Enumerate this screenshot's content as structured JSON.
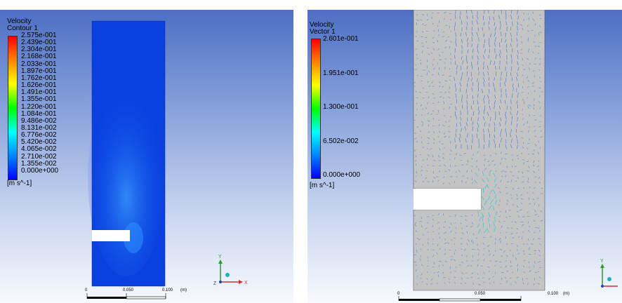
{
  "left_view": {
    "legend": {
      "variable": "Velocity",
      "name": "Contour 1",
      "ticks": [
        "2.575e-001",
        "2.439e-001",
        "2.304e-001",
        "2.168e-001",
        "2.033e-001",
        "1.897e-001",
        "1.762e-001",
        "1.626e-001",
        "1.491e-001",
        "1.355e-001",
        "1.220e-001",
        "1.084e-001",
        "9.486e-002",
        "8.131e-002",
        "6.776e-002",
        "5.420e-002",
        "4.065e-002",
        "2.710e-002",
        "1.355e-002",
        "0.000e+000"
      ],
      "unit": "[m s^-1]"
    },
    "scale": {
      "labels": [
        "0",
        "0.050",
        "0.100"
      ],
      "unit": "(m)"
    },
    "axes": {
      "y": "Y",
      "x": "X",
      "z": "Z"
    }
  },
  "right_view": {
    "legend": {
      "variable": "Velocity",
      "name": "Vector 1",
      "ticks": [
        "2.601e-001",
        "1.951e-001",
        "1.300e-001",
        "6.502e-002",
        "0.000e+000"
      ],
      "unit": "[m s^-1]"
    },
    "scale": {
      "labels": [
        "0",
        "0.050",
        "0.100"
      ],
      "unit": "(m)"
    },
    "axes": {
      "y": "Y"
    }
  },
  "colors": {
    "contour_fill": "#0a3fe0",
    "vector_domain": "#c4c4c4",
    "background_top": "#4d6fc4",
    "background_bottom": "#f7f9fd"
  }
}
